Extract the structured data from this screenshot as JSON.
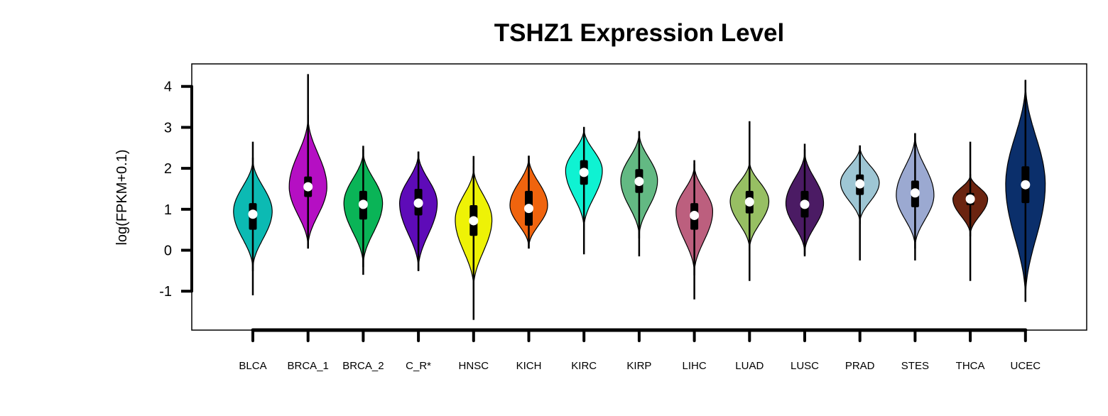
{
  "chart_data": {
    "type": "violin",
    "title": "TSHZ1 Expression Level",
    "xlabel": "",
    "ylabel": "log(FPKM+0.1)",
    "ylim": [
      -1.95,
      4.55
    ],
    "yticks": [
      -1,
      0,
      1,
      2,
      3,
      4
    ],
    "ytick_labels": [
      "-1",
      "0",
      "1",
      "2",
      "3",
      "4"
    ],
    "grid": false,
    "legend": "none",
    "categories": [
      "BLCA",
      "BRCA_1",
      "BRCA_2",
      "C_R*",
      "HNSC",
      "KICH",
      "KIRC",
      "KIRP",
      "LIHC",
      "LUAD",
      "LUSC",
      "PRAD",
      "STES",
      "THCA",
      "UCEC"
    ],
    "violins": [
      {
        "category": "BLCA",
        "color": "#0cbab3",
        "min": -1.1,
        "q1": 0.5,
        "median": 0.88,
        "q3": 1.15,
        "max": 2.65,
        "vmin": -0.5,
        "vmax": 2.25,
        "mode": 0.95,
        "width": 0.8
      },
      {
        "category": "BRCA_1",
        "color": "#b50fc3",
        "min": 0.05,
        "q1": 1.3,
        "median": 1.55,
        "q3": 1.8,
        "max": 4.3,
        "vmin": 0.05,
        "vmax": 3.3,
        "mode": 1.55,
        "width": 0.78
      },
      {
        "category": "BRCA_2",
        "color": "#0ab457",
        "min": -0.6,
        "q1": 0.75,
        "median": 1.12,
        "q3": 1.45,
        "max": 2.55,
        "vmin": -0.4,
        "vmax": 2.45,
        "mode": 1.15,
        "width": 0.8
      },
      {
        "category": "C_R*",
        "color": "#5e0bb8",
        "min": -0.5,
        "q1": 0.85,
        "median": 1.15,
        "q3": 1.5,
        "max": 2.4,
        "vmin": -0.5,
        "vmax": 2.4,
        "mode": 1.15,
        "width": 0.78
      },
      {
        "category": "HNSC",
        "color": "#eef206",
        "min": -1.7,
        "q1": 0.35,
        "median": 0.72,
        "q3": 1.1,
        "max": 2.3,
        "vmin": -0.95,
        "vmax": 2.05,
        "mode": 0.75,
        "width": 0.76
      },
      {
        "category": "KICH",
        "color": "#f0640e",
        "min": 0.05,
        "q1": 0.6,
        "median": 1.02,
        "q3": 1.45,
        "max": 2.3,
        "vmin": 0.05,
        "vmax": 2.3,
        "mode": 1.1,
        "width": 0.78
      },
      {
        "category": "KIRC",
        "color": "#0ff2d2",
        "min": -0.1,
        "q1": 1.6,
        "median": 1.9,
        "q3": 2.2,
        "max": 3.0,
        "vmin": 0.5,
        "vmax": 3.0,
        "mode": 1.95,
        "width": 0.76
      },
      {
        "category": "KIRP",
        "color": "#63b983",
        "min": -0.15,
        "q1": 1.4,
        "median": 1.68,
        "q3": 1.98,
        "max": 2.9,
        "vmin": 0.3,
        "vmax": 2.9,
        "mode": 1.7,
        "width": 0.76
      },
      {
        "category": "LIHC",
        "color": "#bc5f7e",
        "min": -1.2,
        "q1": 0.5,
        "median": 0.85,
        "q3": 1.15,
        "max": 2.2,
        "vmin": -0.6,
        "vmax": 2.1,
        "mode": 0.95,
        "width": 0.76
      },
      {
        "category": "LUAD",
        "color": "#97bf63",
        "min": -0.75,
        "q1": 0.9,
        "median": 1.18,
        "q3": 1.45,
        "max": 3.15,
        "vmin": 0.0,
        "vmax": 2.2,
        "mode": 1.2,
        "width": 0.8
      },
      {
        "category": "LUSC",
        "color": "#4b1b64",
        "min": -0.15,
        "q1": 0.8,
        "median": 1.12,
        "q3": 1.45,
        "max": 2.6,
        "vmin": -0.1,
        "vmax": 2.45,
        "mode": 1.15,
        "width": 0.78
      },
      {
        "category": "PRAD",
        "color": "#9ec6d4",
        "min": -0.25,
        "q1": 1.35,
        "median": 1.62,
        "q3": 1.85,
        "max": 2.55,
        "vmin": 0.65,
        "vmax": 2.55,
        "mode": 1.65,
        "width": 0.8
      },
      {
        "category": "STES",
        "color": "#9ba9d1",
        "min": -0.25,
        "q1": 1.05,
        "median": 1.4,
        "q3": 1.7,
        "max": 2.85,
        "vmin": 0.05,
        "vmax": 2.85,
        "mode": 1.35,
        "width": 0.78
      },
      {
        "category": "THCA",
        "color": "#6b2410",
        "min": -0.75,
        "q1": 1.1,
        "median": 1.25,
        "q3": 1.4,
        "max": 2.65,
        "vmin": 0.35,
        "vmax": 1.85,
        "mode": 1.25,
        "width": 0.72
      },
      {
        "category": "UCEC",
        "color": "#0b2f6b",
        "min": -1.25,
        "q1": 1.15,
        "median": 1.6,
        "q3": 2.05,
        "max": 4.15,
        "vmin": -1.25,
        "vmax": 4.15,
        "mode": 1.6,
        "width": 0.82
      }
    ]
  }
}
